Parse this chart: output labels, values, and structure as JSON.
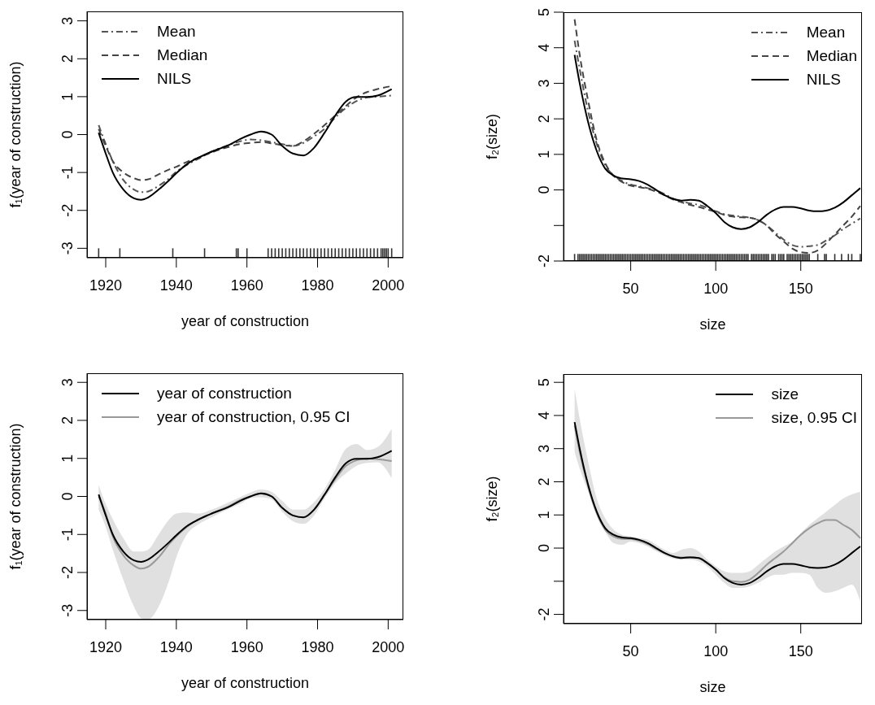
{
  "chart_data": [
    {
      "type": "line",
      "xlabel": "year of construction",
      "ylabel": "f₁(year of construction)",
      "xlim": [
        1914.7,
        2004.3
      ],
      "ylim": [
        -3.25,
        3.25
      ],
      "xticks": [
        1920,
        1940,
        1960,
        1980,
        2000
      ],
      "yticks": [
        -3,
        -2,
        -1,
        0,
        1,
        2,
        3
      ],
      "legend": "top left",
      "x": [
        1918,
        1920,
        1922,
        1925,
        1928,
        1930,
        1932,
        1935,
        1938,
        1940,
        1943,
        1946,
        1950,
        1955,
        1958,
        1961,
        1964,
        1967,
        1970,
        1973,
        1976,
        1979,
        1982,
        1985,
        1988,
        1991,
        1994,
        1997,
        2001
      ],
      "series": [
        {
          "name": "Mean",
          "color": "#555555",
          "line_style": "dashdot",
          "values": [
            0.25,
            -0.25,
            -0.7,
            -1.2,
            -1.45,
            -1.52,
            -1.5,
            -1.35,
            -1.15,
            -0.98,
            -0.8,
            -0.65,
            -0.45,
            -0.27,
            -0.18,
            -0.13,
            -0.15,
            -0.2,
            -0.25,
            -0.3,
            -0.22,
            -0.05,
            0.15,
            0.45,
            0.7,
            0.88,
            0.98,
            1.0,
            1.03
          ]
        },
        {
          "name": "Median",
          "color": "#444444",
          "line_style": "dashed",
          "values": [
            0.15,
            -0.3,
            -0.7,
            -1.0,
            -1.15,
            -1.2,
            -1.18,
            -1.05,
            -0.92,
            -0.85,
            -0.72,
            -0.62,
            -0.47,
            -0.32,
            -0.25,
            -0.22,
            -0.2,
            -0.23,
            -0.28,
            -0.3,
            -0.18,
            0.02,
            0.25,
            0.5,
            0.75,
            0.98,
            1.12,
            1.2,
            1.28
          ]
        },
        {
          "name": "NILS",
          "color": "#000000",
          "line_style": "solid",
          "values": [
            0.05,
            -0.5,
            -1.0,
            -1.45,
            -1.68,
            -1.72,
            -1.66,
            -1.45,
            -1.2,
            -1.02,
            -0.78,
            -0.62,
            -0.45,
            -0.27,
            -0.12,
            0.0,
            0.08,
            0.0,
            -0.3,
            -0.5,
            -0.55,
            -0.35,
            0.05,
            0.5,
            0.87,
            0.99,
            0.99,
            1.03,
            1.2
          ]
        },
        {
          "type": "bar",
          "color": "#333333",
          "x": [
            1918,
            1924,
            1939,
            1948,
            1957,
            1957.5,
            1960,
            1966,
            1967,
            1968,
            1969,
            1970,
            1971,
            1972,
            1973,
            1974,
            1975,
            1976,
            1977,
            1978,
            1979,
            1980,
            1981,
            1982,
            1983,
            1984,
            1985,
            1986,
            1987,
            1988,
            1989,
            1990,
            1991,
            1992,
            1993,
            1994,
            1995,
            1996,
            1997,
            1998,
            1998.5,
            1999,
            1999.5,
            2000,
            2001
          ],
          "base": [
            -3.25,
            -3.25,
            -3.25,
            -3.25,
            -3.25,
            -3.25,
            -3.25,
            -3.25,
            -3.25,
            -3.25,
            -3.25,
            -3.25,
            -3.25,
            -3.25,
            -3.25,
            -3.25,
            -3.25,
            -3.25,
            -3.25,
            -3.25,
            -3.25,
            -3.25,
            -3.25,
            -3.25,
            -3.25,
            -3.25,
            -3.25,
            -3.25,
            -3.25,
            -3.25,
            -3.25,
            -3.25,
            -3.25,
            -3.25,
            -3.25,
            -3.25,
            -3.25,
            -3.25,
            -3.25,
            -3.25,
            -3.25,
            -3.25,
            -3.25,
            -3.25,
            -3.25
          ],
          "values": [
            0.25,
            0.25,
            0.25,
            0.25,
            0.25,
            0.25,
            0.25,
            0.25,
            0.25,
            0.25,
            0.25,
            0.25,
            0.25,
            0.25,
            0.25,
            0.25,
            0.25,
            0.25,
            0.25,
            0.25,
            0.25,
            0.25,
            0.25,
            0.25,
            0.25,
            0.25,
            0.25,
            0.25,
            0.25,
            0.25,
            0.25,
            0.25,
            0.25,
            0.25,
            0.25,
            0.25,
            0.25,
            0.25,
            0.25,
            0.25,
            0.25,
            0.25,
            0.25,
            0.25,
            0.25
          ]
        }
      ]
    },
    {
      "type": "line",
      "xlabel": "size",
      "ylabel": "f₂(size)",
      "xlim": [
        10.5,
        186
      ],
      "ylim": [
        -2,
        5
      ],
      "xticks": [
        50,
        100,
        150
      ],
      "yticks": [
        -2,
        {
          "value": -1,
          "label": null
        },
        0,
        1,
        2,
        3,
        4,
        5
      ],
      "legend": "top right",
      "x": [
        17,
        20,
        25,
        30,
        35,
        40,
        45,
        50,
        55,
        60,
        65,
        70,
        75,
        80,
        85,
        90,
        95,
        100,
        105,
        110,
        115,
        120,
        125,
        130,
        135,
        140,
        145,
        150,
        155,
        160,
        165,
        170,
        175,
        180,
        185
      ],
      "series": [
        {
          "name": "Mean",
          "color": "#555555",
          "line_style": "dashdot",
          "values": [
            4.2,
            3.4,
            2.2,
            1.3,
            0.7,
            0.4,
            0.25,
            0.15,
            0.1,
            0.05,
            -0.02,
            -0.12,
            -0.25,
            -0.32,
            -0.38,
            -0.42,
            -0.5,
            -0.6,
            -0.68,
            -0.72,
            -0.75,
            -0.78,
            -0.85,
            -1.0,
            -1.2,
            -1.4,
            -1.55,
            -1.6,
            -1.58,
            -1.55,
            -1.42,
            -1.28,
            -1.1,
            -0.95,
            -0.8
          ]
        },
        {
          "name": "Median",
          "color": "#444444",
          "line_style": "dashed",
          "values": [
            4.8,
            3.8,
            2.5,
            1.4,
            0.75,
            0.4,
            0.22,
            0.12,
            0.08,
            0.03,
            -0.05,
            -0.15,
            -0.27,
            -0.35,
            -0.42,
            -0.48,
            -0.55,
            -0.62,
            -0.7,
            -0.75,
            -0.77,
            -0.78,
            -0.85,
            -1.0,
            -1.25,
            -1.45,
            -1.65,
            -1.75,
            -1.77,
            -1.7,
            -1.5,
            -1.25,
            -1.0,
            -0.75,
            -0.45
          ]
        },
        {
          "name": "NILS",
          "color": "#000000",
          "line_style": "solid",
          "values": [
            3.8,
            3.0,
            1.9,
            1.1,
            0.6,
            0.4,
            0.32,
            0.3,
            0.25,
            0.15,
            0.0,
            -0.15,
            -0.25,
            -0.3,
            -0.28,
            -0.3,
            -0.45,
            -0.65,
            -0.9,
            -1.05,
            -1.1,
            -1.05,
            -0.9,
            -0.7,
            -0.55,
            -0.48,
            -0.48,
            -0.52,
            -0.58,
            -0.6,
            -0.58,
            -0.5,
            -0.35,
            -0.15,
            0.05
          ]
        },
        {
          "type": "bar",
          "color": "#333333",
          "x": [
            17,
            19,
            20,
            21,
            22,
            23,
            24,
            25,
            26,
            27,
            28,
            29,
            30,
            31,
            32,
            33,
            34,
            35,
            36,
            37,
            38,
            39,
            40,
            41,
            42,
            43,
            44,
            45,
            46,
            47,
            48,
            49,
            50,
            51,
            52,
            53,
            54,
            55,
            56,
            57,
            58,
            59,
            60,
            61,
            62,
            63,
            64,
            65,
            66,
            67,
            68,
            69,
            70,
            71,
            72,
            73,
            74,
            75,
            76,
            77,
            78,
            79,
            80,
            81,
            82,
            83,
            84,
            85,
            86,
            87,
            88,
            89,
            90,
            91,
            92,
            93,
            94,
            95,
            96,
            97,
            98,
            99,
            100,
            101,
            102,
            103,
            104,
            105,
            106,
            107,
            108,
            109,
            110,
            111,
            112,
            113,
            114,
            115,
            116,
            117,
            118,
            119,
            121,
            122,
            123,
            124,
            125,
            126,
            127,
            128,
            129,
            130,
            131,
            133,
            134,
            135,
            137,
            138,
            139,
            140,
            142,
            143,
            144,
            145,
            146,
            147,
            148,
            149,
            150,
            151,
            152,
            153,
            154,
            155,
            160,
            164,
            165,
            170,
            174,
            178,
            180,
            185
          ],
          "base": [
            -2,
            -2,
            -2,
            -2,
            -2,
            -2,
            -2,
            -2,
            -2,
            -2,
            -2,
            -2,
            -2,
            -2,
            -2,
            -2,
            -2,
            -2,
            -2,
            -2,
            -2,
            -2,
            -2,
            -2,
            -2,
            -2,
            -2,
            -2,
            -2,
            -2,
            -2,
            -2,
            -2,
            -2,
            -2,
            -2,
            -2,
            -2,
            -2,
            -2,
            -2,
            -2,
            -2,
            -2,
            -2,
            -2,
            -2,
            -2,
            -2,
            -2,
            -2,
            -2,
            -2,
            -2,
            -2,
            -2,
            -2,
            -2,
            -2,
            -2,
            -2,
            -2,
            -2,
            -2,
            -2,
            -2,
            -2,
            -2,
            -2,
            -2,
            -2,
            -2,
            -2,
            -2,
            -2,
            -2,
            -2,
            -2,
            -2,
            -2,
            -2,
            -2,
            -2,
            -2,
            -2,
            -2,
            -2,
            -2,
            -2,
            -2,
            -2,
            -2,
            -2,
            -2,
            -2,
            -2,
            -2,
            -2,
            -2,
            -2,
            -2,
            -2,
            -2,
            -2,
            -2,
            -2,
            -2,
            -2,
            -2,
            -2,
            -2,
            -2,
            -2,
            -2,
            -2,
            -2,
            -2,
            -2,
            -2,
            -2,
            -2,
            -2,
            -2,
            -2,
            -2,
            -2,
            -2,
            -2,
            -2,
            -2,
            -2,
            -2,
            -2,
            -2,
            -2,
            -2,
            -2,
            -2,
            -2,
            -2,
            -2,
            -2
          ],
          "values": [
            0.2,
            0.2,
            0.2,
            0.2,
            0.2,
            0.2,
            0.2,
            0.2,
            0.2,
            0.2,
            0.2,
            0.2,
            0.2,
            0.2,
            0.2,
            0.2,
            0.2,
            0.2,
            0.2,
            0.2,
            0.2,
            0.2,
            0.2,
            0.2,
            0.2,
            0.2,
            0.2,
            0.2,
            0.2,
            0.2,
            0.2,
            0.2,
            0.2,
            0.2,
            0.2,
            0.2,
            0.2,
            0.2,
            0.2,
            0.2,
            0.2,
            0.2,
            0.2,
            0.2,
            0.2,
            0.2,
            0.2,
            0.2,
            0.2,
            0.2,
            0.2,
            0.2,
            0.2,
            0.2,
            0.2,
            0.2,
            0.2,
            0.2,
            0.2,
            0.2,
            0.2,
            0.2,
            0.2,
            0.2,
            0.2,
            0.2,
            0.2,
            0.2,
            0.2,
            0.2,
            0.2,
            0.2,
            0.2,
            0.2,
            0.2,
            0.2,
            0.2,
            0.2,
            0.2,
            0.2,
            0.2,
            0.2,
            0.2,
            0.2,
            0.2,
            0.2,
            0.2,
            0.2,
            0.2,
            0.2,
            0.2,
            0.2,
            0.2,
            0.2,
            0.2,
            0.2,
            0.2,
            0.2,
            0.2,
            0.2,
            0.2,
            0.2,
            0.2,
            0.2,
            0.2,
            0.2,
            0.2,
            0.2,
            0.2,
            0.2,
            0.2,
            0.2,
            0.2,
            0.2,
            0.2,
            0.2,
            0.2,
            0.2,
            0.2,
            0.2,
            0.2,
            0.2,
            0.2,
            0.2,
            0.2,
            0.2,
            0.2,
            0.2,
            0.2,
            0.2,
            0.2,
            0.2,
            0.2,
            0.2,
            0.2,
            0.2,
            0.2,
            0.2,
            0.2,
            0.2,
            0.2,
            0.2
          ]
        }
      ]
    },
    {
      "type": "line",
      "xlabel": "year of construction",
      "ylabel": "f₁(year of construction)",
      "xlim": [
        1914.7,
        2004.3
      ],
      "ylim": [
        -3.24,
        3.24
      ],
      "xticks": [
        1920,
        1940,
        1960,
        1980,
        2000
      ],
      "yticks": [
        -3,
        -2,
        -1,
        0,
        1,
        2,
        3
      ],
      "legend": "top left",
      "x": [
        1918,
        1920,
        1922,
        1925,
        1928,
        1930,
        1932,
        1935,
        1938,
        1940,
        1943,
        1946,
        1950,
        1955,
        1958,
        1961,
        1964,
        1967,
        1970,
        1973,
        1976,
        1979,
        1982,
        1985,
        1988,
        1991,
        1994,
        1997,
        2001
      ],
      "series": [
        {
          "name": "year of construction",
          "color": "#000000",
          "values": [
            0.05,
            -0.5,
            -1.0,
            -1.45,
            -1.68,
            -1.72,
            -1.66,
            -1.45,
            -1.2,
            -1.02,
            -0.78,
            -0.62,
            -0.45,
            -0.27,
            -0.12,
            0.0,
            0.08,
            0.0,
            -0.3,
            -0.5,
            -0.55,
            -0.35,
            0.05,
            0.5,
            0.87,
            0.99,
            0.99,
            1.03,
            1.2
          ]
        },
        {
          "name": "year of construction, 0.95 CI",
          "color": "#999999",
          "values": [
            0.0,
            -0.45,
            -1.05,
            -1.55,
            -1.82,
            -1.9,
            -1.85,
            -1.6,
            -1.25,
            -1.05,
            -0.8,
            -0.62,
            -0.45,
            -0.25,
            -0.1,
            0.0,
            0.08,
            0.0,
            -0.3,
            -0.5,
            -0.55,
            -0.35,
            0.05,
            0.45,
            0.8,
            0.95,
            1.0,
            0.98,
            0.93
          ],
          "lower": [
            -0.35,
            -0.8,
            -1.4,
            -2.2,
            -2.9,
            -3.2,
            -3.24,
            -2.9,
            -2.2,
            -1.6,
            -1.0,
            -0.75,
            -0.55,
            -0.32,
            -0.2,
            -0.05,
            -0.02,
            -0.08,
            -0.4,
            -0.65,
            -0.72,
            -0.5,
            -0.05,
            0.35,
            0.6,
            0.8,
            0.88,
            0.9,
            0.48
          ],
          "upper": [
            0.3,
            -0.2,
            -0.6,
            -1.1,
            -1.45,
            -1.45,
            -1.4,
            -1.0,
            -0.6,
            -0.45,
            -0.42,
            -0.45,
            -0.35,
            -0.15,
            -0.02,
            0.1,
            0.18,
            0.12,
            -0.12,
            -0.35,
            -0.35,
            -0.15,
            0.2,
            0.7,
            1.25,
            1.38,
            1.22,
            1.3,
            1.78
          ]
        }
      ]
    },
    {
      "type": "line",
      "xlabel": "size",
      "ylabel": "f₂(size)",
      "xlim": [
        10.5,
        186
      ],
      "ylim": [
        -2.28,
        5.25
      ],
      "xticks": [
        50,
        100,
        150
      ],
      "yticks": [
        -2,
        {
          "value": -1,
          "label": null
        },
        0,
        1,
        2,
        3,
        4,
        5
      ],
      "legend": "top right",
      "x": [
        17,
        20,
        25,
        30,
        35,
        40,
        45,
        50,
        55,
        60,
        65,
        70,
        75,
        80,
        85,
        90,
        95,
        100,
        105,
        110,
        115,
        120,
        125,
        130,
        135,
        140,
        145,
        150,
        155,
        160,
        165,
        170,
        175,
        180,
        185
      ],
      "series": [
        {
          "name": "size",
          "color": "#000000",
          "values": [
            3.8,
            3.0,
            1.9,
            1.1,
            0.6,
            0.4,
            0.32,
            0.3,
            0.25,
            0.15,
            0.0,
            -0.15,
            -0.25,
            -0.3,
            -0.28,
            -0.3,
            -0.45,
            -0.65,
            -0.9,
            -1.05,
            -1.1,
            -1.05,
            -0.9,
            -0.7,
            -0.55,
            -0.48,
            -0.48,
            -0.52,
            -0.58,
            -0.6,
            -0.58,
            -0.5,
            -0.35,
            -0.15,
            0.05
          ]
        },
        {
          "name": "size, 0.95 CI",
          "color": "#999999",
          "values": [
            3.7,
            2.9,
            1.85,
            1.05,
            0.55,
            0.35,
            0.28,
            0.28,
            0.22,
            0.12,
            -0.02,
            -0.15,
            -0.25,
            -0.28,
            -0.27,
            -0.3,
            -0.45,
            -0.65,
            -0.88,
            -1.0,
            -1.02,
            -0.95,
            -0.75,
            -0.5,
            -0.3,
            -0.1,
            0.15,
            0.4,
            0.6,
            0.75,
            0.85,
            0.85,
            0.7,
            0.55,
            0.3
          ],
          "lower": [
            2.9,
            2.4,
            1.7,
            1.0,
            0.5,
            0.15,
            0.1,
            0.2,
            0.15,
            0.05,
            -0.1,
            -0.22,
            -0.32,
            -0.35,
            -0.35,
            -0.4,
            -0.55,
            -0.8,
            -1.05,
            -1.2,
            -1.2,
            -1.15,
            -1.05,
            -0.9,
            -0.8,
            -0.8,
            -0.75,
            -0.75,
            -0.8,
            -1.2,
            -1.35,
            -1.3,
            -1.2,
            -1.1,
            -1.6
          ],
          "upper": [
            4.8,
            3.9,
            2.6,
            1.5,
            0.9,
            0.55,
            0.4,
            0.35,
            0.3,
            0.25,
            0.1,
            -0.05,
            -0.15,
            -0.05,
            0.0,
            -0.1,
            -0.35,
            -0.55,
            -0.7,
            -0.75,
            -0.75,
            -0.7,
            -0.5,
            -0.3,
            -0.1,
            0.05,
            0.2,
            0.45,
            0.7,
            0.9,
            1.1,
            1.3,
            1.5,
            1.62,
            1.7
          ]
        }
      ]
    }
  ]
}
